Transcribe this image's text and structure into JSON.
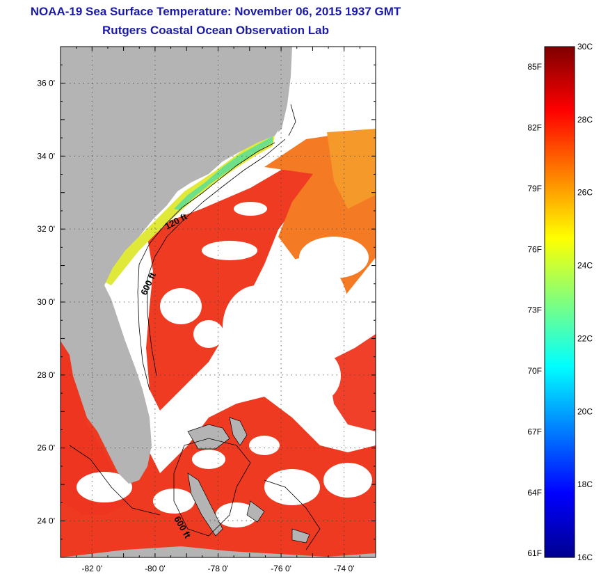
{
  "header": {
    "title": "NOAA-19 Sea Surface Temperature:  November 06, 2015 1937 GMT",
    "subtitle": "Rutgers Coastal Ocean Observation Lab"
  },
  "map": {
    "lon_range": [
      -83.0,
      -73.0
    ],
    "lat_range": [
      23.0,
      37.0
    ],
    "lon_ticks": [
      {
        "value": -82,
        "label": "-82 0'"
      },
      {
        "value": -80,
        "label": "-80 0'"
      },
      {
        "value": -78,
        "label": "-78 0'"
      },
      {
        "value": -76,
        "label": "-76 0'"
      },
      {
        "value": -74,
        "label": "-74 0'"
      }
    ],
    "lat_ticks": [
      {
        "value": 36,
        "label": "36 0'"
      },
      {
        "value": 34,
        "label": "34 0'"
      },
      {
        "value": 32,
        "label": "32 0'"
      },
      {
        "value": 30,
        "label": "30 0'"
      },
      {
        "value": 28,
        "label": "28 0'"
      },
      {
        "value": 26,
        "label": "26 0'"
      },
      {
        "value": 24,
        "label": "24 0'"
      }
    ],
    "contour_labels": [
      {
        "text": "120 ft"
      },
      {
        "text": "600 ft"
      },
      {
        "text": "600 ft"
      }
    ],
    "colors": {
      "land": "#b4b4b4",
      "cloud": "#ffffff",
      "warm_sea": "#f0321e",
      "mid_sea": "#f58c23"
    }
  },
  "colorbar": {
    "range_c": [
      16,
      30
    ],
    "celsius_labels": [
      "30C",
      "28C",
      "26C",
      "24C",
      "22C",
      "20C",
      "18C",
      "16C"
    ],
    "fahrenheit_labels": [
      "85F",
      "82F",
      "79F",
      "76F",
      "73F",
      "70F",
      "67F",
      "64F",
      "61F"
    ]
  }
}
